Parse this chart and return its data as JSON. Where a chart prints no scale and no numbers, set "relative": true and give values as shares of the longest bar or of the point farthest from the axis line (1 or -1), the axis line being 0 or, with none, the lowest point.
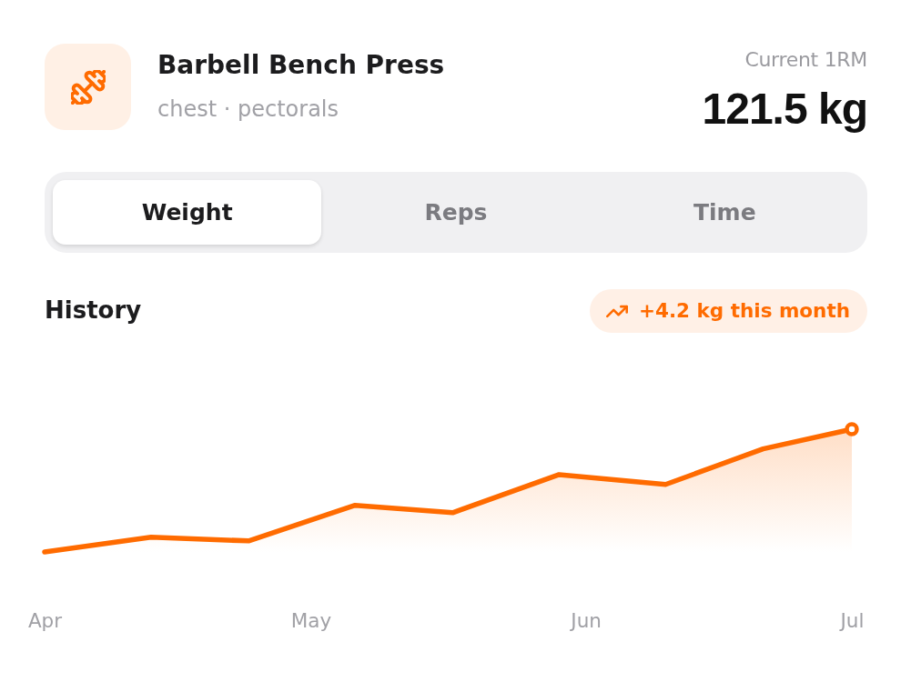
{
  "chart_data": [
    {
      "type": "other",
      "title": "Barbell Bench Press",
      "subtitle": "chest · pectorals",
      "annotations": [
        "Current 1RM",
        "121.5 kg",
        "Weight",
        "Reps",
        "Time"
      ]
    },
    {
      "type": "area",
      "title": "History",
      "annotations": [
        "+4.2 kg this month"
      ],
      "relative": true,
      "x": [
        "--04-01",
        "--04-13",
        "--04-24",
        "--05-06",
        "--05-17",
        "--05-29",
        "--06-10",
        "--06-21",
        "--07-01"
      ],
      "xlim": [
        "--04-01",
        "--07-01"
      ],
      "xticks": [
        {
          "value": "--04-01",
          "label": "Apr"
        },
        {
          "value": "--05-01",
          "label": "May"
        },
        {
          "value": "--06-01",
          "label": "Jun"
        },
        {
          "value": "--07-01",
          "label": "Jul"
        }
      ],
      "series": [
        {
          "color": "#ff6b00",
          "values": [
            0,
            0.12,
            0.09,
            0.38,
            0.32,
            0.63,
            0.55,
            0.84,
            1
          ]
        },
        {
          "type": "scatter",
          "x": [
            "--07-01"
          ],
          "color": "#ff6b00",
          "values": [
            1
          ]
        }
      ]
    }
  ]
}
